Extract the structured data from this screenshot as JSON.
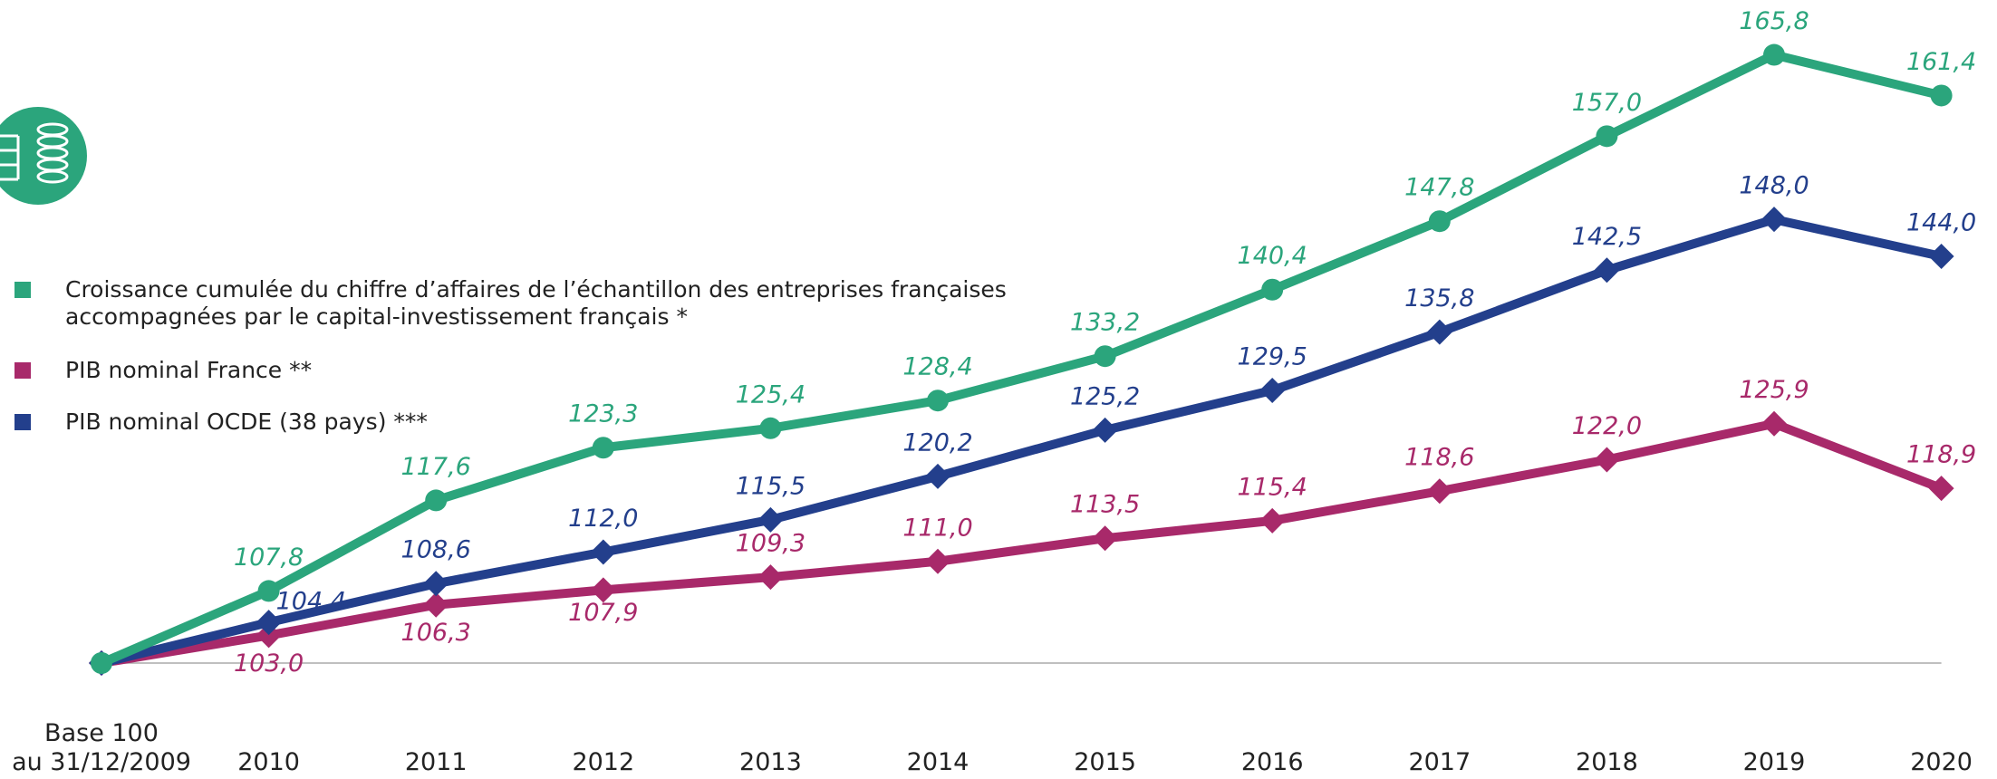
{
  "chart_data": {
    "type": "line",
    "categories": [
      "Base 100\nau 31/12/2009",
      "2010",
      "2011",
      "2012",
      "2013",
      "2014",
      "2015",
      "2016",
      "2017",
      "2018",
      "2019",
      "2020"
    ],
    "ylim": [
      100,
      166
    ],
    "series": [
      {
        "name": "Croissance cumulée du chiffre d’affaires de l’échantillon des entreprises françaises\naccompagnées par le capital-investissement français *",
        "color": "#2ba57c",
        "marker": "circle",
        "values": [
          100,
          107.8,
          117.6,
          123.3,
          125.4,
          128.4,
          133.2,
          140.4,
          147.8,
          157.0,
          165.8,
          161.4
        ],
        "value_labels": [
          null,
          "107,8",
          "117,6",
          "123,3",
          "125,4",
          "128,4",
          "133,2",
          "140,4",
          "147,8",
          "157,0",
          "165,8",
          "161,4"
        ]
      },
      {
        "name": "PIB nominal France **",
        "color": "#a8296a",
        "marker": "diamond",
        "values": [
          100,
          103.0,
          106.3,
          107.9,
          109.3,
          111.0,
          113.5,
          115.4,
          118.6,
          122.0,
          125.9,
          118.9
        ],
        "value_labels": [
          null,
          "103,0",
          "106,3",
          "107,9",
          "109,3",
          "111,0",
          "113,5",
          "115,4",
          "118,6",
          "122,0",
          "125,9",
          "118,9"
        ]
      },
      {
        "name": "PIB nominal OCDE (38 pays) ***",
        "color": "#233f8c",
        "marker": "diamond",
        "values": [
          100,
          104.4,
          108.6,
          112.0,
          115.5,
          120.2,
          125.2,
          129.5,
          135.8,
          142.5,
          148.0,
          144.0
        ],
        "value_labels": [
          null,
          "104,4",
          "108,6",
          "112,0",
          "115,5",
          "120,2",
          "125,2",
          "129,5",
          "135,8",
          "142,5",
          "148,0",
          "144,0"
        ]
      }
    ]
  }
}
